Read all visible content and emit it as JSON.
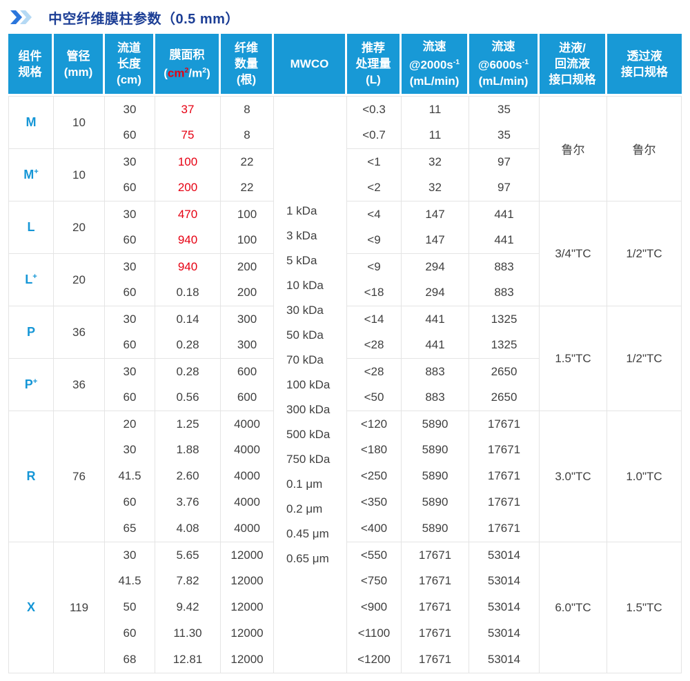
{
  "colors": {
    "header_bg": "#1899d6",
    "red_accent": "#e60012",
    "component_blue": "#1596d6",
    "title_blue": "#1c3e95",
    "grid_line": "#e4e4e4"
  },
  "title": {
    "text": "中空纤维膜柱参数（0.5 mm）"
  },
  "table": {
    "headers": [
      {
        "id": "component",
        "lines": [
          [
            {
              "t": "组件"
            }
          ],
          [
            {
              "t": "规格"
            }
          ]
        ]
      },
      {
        "id": "diameter",
        "lines": [
          [
            {
              "t": "管径"
            }
          ],
          [
            {
              "t": "(mm)"
            }
          ]
        ]
      },
      {
        "id": "channel-length",
        "lines": [
          [
            {
              "t": "流道"
            }
          ],
          [
            {
              "t": "长度"
            }
          ],
          [
            {
              "t": "(cm)"
            }
          ]
        ]
      },
      {
        "id": "membrane-area",
        "lines": [
          [
            {
              "t": "膜面积"
            }
          ],
          [
            {
              "t": "("
            },
            {
              "t": "cm",
              "red": true
            },
            {
              "t": "2",
              "red": true,
              "sup": true
            },
            {
              "t": "/m"
            },
            {
              "t": "2",
              "sup": true
            },
            {
              "t": ")"
            }
          ]
        ]
      },
      {
        "id": "fiber-count",
        "lines": [
          [
            {
              "t": "纤维"
            }
          ],
          [
            {
              "t": "数量"
            }
          ],
          [
            {
              "t": "(根)"
            }
          ]
        ]
      },
      {
        "id": "mwco",
        "lines": [
          [
            {
              "t": "MWCO"
            }
          ]
        ]
      },
      {
        "id": "recommended-volume",
        "lines": [
          [
            {
              "t": "推荐"
            }
          ],
          [
            {
              "t": "处理量"
            }
          ],
          [
            {
              "t": "(L)"
            }
          ]
        ]
      },
      {
        "id": "flow-2000",
        "lines": [
          [
            {
              "t": "流速"
            }
          ],
          [
            {
              "t": "@2000s"
            },
            {
              "t": "-1",
              "sup": true
            }
          ],
          [
            {
              "t": "(mL/min)"
            }
          ]
        ]
      },
      {
        "id": "flow-6000",
        "lines": [
          [
            {
              "t": "流速"
            }
          ],
          [
            {
              "t": "@6000s"
            },
            {
              "t": "-1",
              "sup": true
            }
          ],
          [
            {
              "t": "(mL/min)"
            }
          ]
        ]
      },
      {
        "id": "inlet-interface",
        "lines": [
          [
            {
              "t": "进液/"
            }
          ],
          [
            {
              "t": "回流液"
            }
          ],
          [
            {
              "t": "接口规格"
            }
          ]
        ]
      },
      {
        "id": "permeate-interface",
        "lines": [
          [
            {
              "t": "透过液"
            }
          ],
          [
            {
              "t": "接口规格"
            }
          ]
        ]
      }
    ],
    "mwco_values": [
      "1 kDa",
      "3 kDa",
      "5 kDa",
      "10 kDa",
      "30 kDa",
      "50 kDa",
      "70 kDa",
      "100 kDa",
      "300 kDa",
      "500 kDa",
      "750 kDa",
      "0.1 μm",
      "0.2 μm",
      "0.45 μm",
      "0.65 μm"
    ],
    "groups": [
      {
        "name": "M",
        "label": "M",
        "label_sup": "",
        "diameter": "10",
        "rows": [
          {
            "length": "30",
            "area": "37",
            "area_red": true,
            "fibers": "8",
            "volume": "<0.3",
            "flow_2000": "11",
            "flow_6000": "35"
          },
          {
            "length": "60",
            "area": "75",
            "area_red": true,
            "fibers": "8",
            "volume": "<0.7",
            "flow_2000": "11",
            "flow_6000": "35"
          }
        ]
      },
      {
        "name": "M+",
        "label": "M",
        "label_sup": "+",
        "diameter": "10",
        "rows": [
          {
            "length": "30",
            "area": "100",
            "area_red": true,
            "fibers": "22",
            "volume": "<1",
            "flow_2000": "32",
            "flow_6000": "97"
          },
          {
            "length": "60",
            "area": "200",
            "area_red": true,
            "fibers": "22",
            "volume": "<2",
            "flow_2000": "32",
            "flow_6000": "97"
          }
        ]
      },
      {
        "name": "L",
        "label": "L",
        "label_sup": "",
        "diameter": "20",
        "rows": [
          {
            "length": "30",
            "area": "470",
            "area_red": true,
            "fibers": "100",
            "volume": "<4",
            "flow_2000": "147",
            "flow_6000": "441"
          },
          {
            "length": "60",
            "area": "940",
            "area_red": true,
            "fibers": "100",
            "volume": "<9",
            "flow_2000": "147",
            "flow_6000": "441"
          }
        ]
      },
      {
        "name": "L+",
        "label": "L",
        "label_sup": "+",
        "diameter": "20",
        "rows": [
          {
            "length": "30",
            "area": "940",
            "area_red": true,
            "fibers": "200",
            "volume": "<9",
            "flow_2000": "294",
            "flow_6000": "883"
          },
          {
            "length": "60",
            "area": "0.18",
            "area_red": false,
            "fibers": "200",
            "volume": "<18",
            "flow_2000": "294",
            "flow_6000": "883"
          }
        ]
      },
      {
        "name": "P",
        "label": "P",
        "label_sup": "",
        "diameter": "36",
        "rows": [
          {
            "length": "30",
            "area": "0.14",
            "area_red": false,
            "fibers": "300",
            "volume": "<14",
            "flow_2000": "441",
            "flow_6000": "1325"
          },
          {
            "length": "60",
            "area": "0.28",
            "area_red": false,
            "fibers": "300",
            "volume": "<28",
            "flow_2000": "441",
            "flow_6000": "1325"
          }
        ]
      },
      {
        "name": "P+",
        "label": "P",
        "label_sup": "+",
        "diameter": "36",
        "rows": [
          {
            "length": "30",
            "area": "0.28",
            "area_red": false,
            "fibers": "600",
            "volume": "<28",
            "flow_2000": "883",
            "flow_6000": "2650"
          },
          {
            "length": "60",
            "area": "0.56",
            "area_red": false,
            "fibers": "600",
            "volume": "<50",
            "flow_2000": "883",
            "flow_6000": "2650"
          }
        ]
      },
      {
        "name": "R",
        "label": "R",
        "label_sup": "",
        "diameter": "76",
        "rows": [
          {
            "length": "20",
            "area": "1.25",
            "area_red": false,
            "fibers": "4000",
            "volume": "<120",
            "flow_2000": "5890",
            "flow_6000": "17671"
          },
          {
            "length": "30",
            "area": "1.88",
            "area_red": false,
            "fibers": "4000",
            "volume": "<180",
            "flow_2000": "5890",
            "flow_6000": "17671"
          },
          {
            "length": "41.5",
            "area": "2.60",
            "area_red": false,
            "fibers": "4000",
            "volume": "<250",
            "flow_2000": "5890",
            "flow_6000": "17671"
          },
          {
            "length": "60",
            "area": "3.76",
            "area_red": false,
            "fibers": "4000",
            "volume": "<350",
            "flow_2000": "5890",
            "flow_6000": "17671"
          },
          {
            "length": "65",
            "area": "4.08",
            "area_red": false,
            "fibers": "4000",
            "volume": "<400",
            "flow_2000": "5890",
            "flow_6000": "17671"
          }
        ]
      },
      {
        "name": "X",
        "label": "X",
        "label_sup": "",
        "diameter": "119",
        "rows": [
          {
            "length": "30",
            "area": "5.65",
            "area_red": false,
            "fibers": "12000",
            "volume": "<550",
            "flow_2000": "17671",
            "flow_6000": "53014"
          },
          {
            "length": "41.5",
            "area": "7.82",
            "area_red": false,
            "fibers": "12000",
            "volume": "<750",
            "flow_2000": "17671",
            "flow_6000": "53014"
          },
          {
            "length": "50",
            "area": "9.42",
            "area_red": false,
            "fibers": "12000",
            "volume": "<900",
            "flow_2000": "17671",
            "flow_6000": "53014"
          },
          {
            "length": "60",
            "area": "11.30",
            "area_red": false,
            "fibers": "12000",
            "volume": "<1100",
            "flow_2000": "17671",
            "flow_6000": "53014"
          },
          {
            "length": "68",
            "area": "12.81",
            "area_red": false,
            "fibers": "12000",
            "volume": "<1200",
            "flow_2000": "17671",
            "flow_6000": "53014"
          }
        ]
      }
    ],
    "interface_spans": [
      {
        "groups": [
          "M",
          "M+"
        ],
        "inlet": "鲁尔",
        "permeate": "鲁尔"
      },
      {
        "groups": [
          "L",
          "L+"
        ],
        "inlet": "3/4\"TC",
        "permeate": "1/2\"TC"
      },
      {
        "groups": [
          "P",
          "P+"
        ],
        "inlet": "1.5\"TC",
        "permeate": "1/2\"TC"
      },
      {
        "groups": [
          "R"
        ],
        "inlet": "3.0\"TC",
        "permeate": "1.0\"TC"
      },
      {
        "groups": [
          "X"
        ],
        "inlet": "6.0\"TC",
        "permeate": "1.5\"TC"
      }
    ]
  }
}
